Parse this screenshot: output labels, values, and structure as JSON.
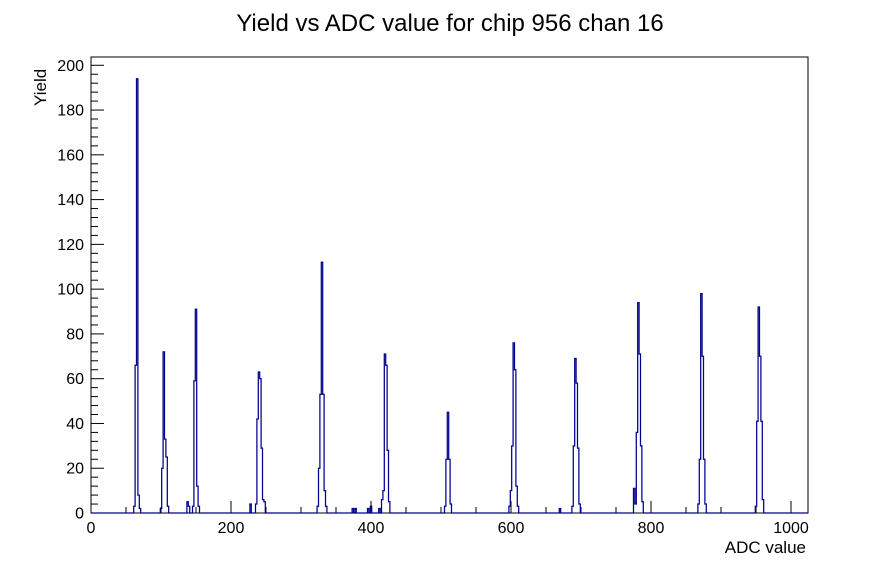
{
  "window": {
    "background": "#ffffff"
  },
  "chart_data": {
    "type": "histogram",
    "title": "Yield vs ADC value for chip 956 chan 16",
    "xlabel": "ADC value",
    "ylabel": "Yield",
    "xlim": [
      0,
      1024.3
    ],
    "ylim": [
      0,
      203.7
    ],
    "x_major_ticks": [
      0,
      200,
      400,
      600,
      800,
      1000
    ],
    "x_minor_step": 50,
    "y_major_step": 20,
    "y_minor_step": 4,
    "grid": "off",
    "legend": "none",
    "line_color": "#00008b",
    "axis_color": "#000000",
    "bin_width": 2,
    "peaks_summary": [
      {
        "adc": 66,
        "yield": 194
      },
      {
        "adc": 104,
        "yield": 72
      },
      {
        "adc": 150,
        "yield": 91
      },
      {
        "adc": 240,
        "yield": 63
      },
      {
        "adc": 330,
        "yield": 112
      },
      {
        "adc": 420,
        "yield": 71
      },
      {
        "adc": 510,
        "yield": 45
      },
      {
        "adc": 604,
        "yield": 76
      },
      {
        "adc": 692,
        "yield": 69
      },
      {
        "adc": 782,
        "yield": 94
      },
      {
        "adc": 872,
        "yield": 98
      },
      {
        "adc": 954,
        "yield": 92
      }
    ],
    "bins": [
      [
        62,
        3
      ],
      [
        64,
        66
      ],
      [
        66,
        194
      ],
      [
        68,
        8
      ],
      [
        70,
        2
      ],
      [
        100,
        2
      ],
      [
        102,
        20
      ],
      [
        104,
        72
      ],
      [
        106,
        33
      ],
      [
        108,
        25
      ],
      [
        110,
        3
      ],
      [
        138,
        5
      ],
      [
        140,
        3
      ],
      [
        146,
        3
      ],
      [
        148,
        59
      ],
      [
        150,
        91
      ],
      [
        152,
        12
      ],
      [
        154,
        3
      ],
      [
        228,
        4
      ],
      [
        236,
        4
      ],
      [
        238,
        42
      ],
      [
        240,
        63
      ],
      [
        242,
        60
      ],
      [
        244,
        29
      ],
      [
        246,
        6
      ],
      [
        248,
        5
      ],
      [
        324,
        3
      ],
      [
        326,
        20
      ],
      [
        328,
        53
      ],
      [
        330,
        112
      ],
      [
        332,
        53
      ],
      [
        334,
        10
      ],
      [
        336,
        3
      ],
      [
        374,
        2
      ],
      [
        378,
        2
      ],
      [
        396,
        2
      ],
      [
        400,
        3
      ],
      [
        412,
        2
      ],
      [
        416,
        6
      ],
      [
        418,
        10
      ],
      [
        420,
        71
      ],
      [
        422,
        66
      ],
      [
        424,
        28
      ],
      [
        426,
        5
      ],
      [
        506,
        3
      ],
      [
        508,
        24
      ],
      [
        510,
        45
      ],
      [
        512,
        24
      ],
      [
        514,
        4
      ],
      [
        598,
        3
      ],
      [
        600,
        10
      ],
      [
        602,
        30
      ],
      [
        604,
        76
      ],
      [
        606,
        64
      ],
      [
        608,
        12
      ],
      [
        610,
        3
      ],
      [
        670,
        2
      ],
      [
        688,
        3
      ],
      [
        690,
        30
      ],
      [
        692,
        69
      ],
      [
        694,
        58
      ],
      [
        696,
        29
      ],
      [
        698,
        4
      ],
      [
        776,
        11
      ],
      [
        778,
        4
      ],
      [
        780,
        36
      ],
      [
        782,
        94
      ],
      [
        784,
        71
      ],
      [
        786,
        30
      ],
      [
        788,
        5
      ],
      [
        868,
        4
      ],
      [
        870,
        24
      ],
      [
        872,
        98
      ],
      [
        874,
        70
      ],
      [
        876,
        24
      ],
      [
        878,
        4
      ],
      [
        950,
        3
      ],
      [
        952,
        41
      ],
      [
        954,
        92
      ],
      [
        956,
        70
      ],
      [
        958,
        41
      ],
      [
        960,
        6
      ]
    ]
  }
}
